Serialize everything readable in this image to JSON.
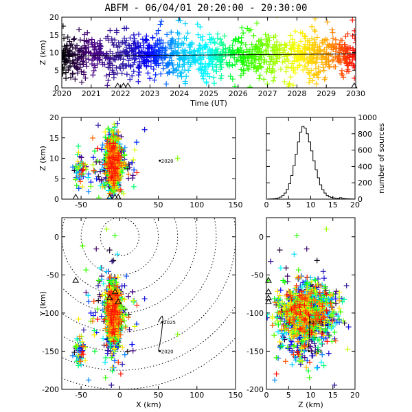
{
  "title": "ABFM - 06/04/01 20:20:00 - 20:30:00",
  "colors": {
    "time_gradient": [
      "#000000",
      "#4b0082",
      "#2f1a9a",
      "#0000ff",
      "#00bfff",
      "#00ffff",
      "#00ff00",
      "#7fff00",
      "#ffff00",
      "#ffa500",
      "#ff0000"
    ],
    "latest": "#ff0000",
    "axis": "#000000",
    "background": "#ffffff"
  },
  "chart_data": [
    {
      "id": "time_height",
      "type": "scatter",
      "xlabel": "Time (UT)",
      "ylabel": "Z (km)",
      "xlim": [
        2020,
        2030
      ],
      "ylim": [
        0,
        20
      ],
      "xticks": [
        "2020",
        "2021",
        "2022",
        "2023",
        "2024",
        "2025",
        "2026",
        "2027",
        "2028",
        "2029",
        "2030"
      ],
      "yticks": [
        "0",
        "5",
        "10",
        "15",
        "20"
      ],
      "density": {
        "z_center": 9.0,
        "z_spread": 3.0,
        "count": 1300
      },
      "trend_line": {
        "x": [
          2020,
          2030
        ],
        "y": [
          9.0,
          9.6
        ]
      },
      "stations_x": [
        2021.9,
        2022.1,
        2022.25,
        2029.95
      ]
    },
    {
      "id": "x_z",
      "type": "scatter",
      "xlabel": "",
      "ylabel": "Z (km)",
      "xlim": [
        -75,
        150
      ],
      "ylim": [
        0,
        20
      ],
      "xticks": [
        "-50",
        "0",
        "50",
        "100",
        "150"
      ],
      "yticks": [
        "0",
        "5",
        "10",
        "15",
        "20"
      ],
      "annotations": [
        {
          "text": "2020",
          "x": 52,
          "y": 9.4
        }
      ],
      "stations_x": [
        -57,
        -13,
        -6,
        -2
      ]
    },
    {
      "id": "histogram",
      "type": "bar",
      "xlabel": "",
      "ylabel": "number of sources",
      "xlim": [
        0,
        20
      ],
      "ylim": [
        0,
        1000
      ],
      "xticks": [
        "0",
        "5",
        "10",
        "15",
        "20"
      ],
      "yticks": [
        "0",
        "200",
        "400",
        "600",
        "800",
        "1000"
      ],
      "bin_width": 0.5,
      "bin_starts": [
        0,
        0.5,
        1,
        1.5,
        2,
        2.5,
        3,
        3.5,
        4,
        4.5,
        5,
        5.5,
        6,
        6.5,
        7,
        7.5,
        8,
        8.5,
        9,
        9.5,
        10,
        10.5,
        11,
        11.5,
        12,
        12.5,
        13,
        13.5,
        14,
        14.5,
        15,
        15.5,
        16,
        16.5,
        17,
        17.5,
        18,
        18.5,
        19,
        19.5
      ],
      "values": [
        0,
        2,
        3,
        5,
        8,
        15,
        25,
        45,
        75,
        120,
        190,
        290,
        410,
        550,
        700,
        820,
        890,
        870,
        800,
        700,
        590,
        470,
        360,
        260,
        175,
        115,
        75,
        45,
        28,
        20,
        15,
        10,
        8,
        18,
        10,
        6,
        4,
        3,
        2,
        1
      ]
    },
    {
      "id": "x_y",
      "type": "scatter",
      "xlabel": "X (km)",
      "ylabel": "Y (km)",
      "xlim": [
        -75,
        150
      ],
      "ylim": [
        -200,
        25
      ],
      "xticks": [
        "-50",
        "0",
        "50",
        "100",
        "150"
      ],
      "yticks": [
        "-200",
        "-150",
        "-100",
        "-50",
        "0"
      ],
      "range_rings_km": [
        25,
        50,
        75,
        100,
        125,
        150,
        175,
        200
      ],
      "annotations": [
        {
          "text": "2025",
          "x": 55,
          "y": -112
        },
        {
          "text": "2020",
          "x": 52,
          "y": -150
        }
      ],
      "track": {
        "x": [
          50,
          52,
          54,
          55,
          56,
          55,
          53,
          51,
          50
        ],
        "y": [
          -150,
          -140,
          -128,
          -118,
          -108,
          -104,
          -106,
          -110,
          -112
        ]
      },
      "stations": [
        [
          -57,
          -57
        ],
        [
          -13,
          -80
        ],
        [
          -6,
          -72
        ],
        [
          -2,
          -85
        ]
      ]
    },
    {
      "id": "z_y",
      "type": "scatter",
      "xlabel": "Z (km)",
      "ylabel": "",
      "xlim": [
        0,
        20
      ],
      "ylim": [
        -200,
        25
      ],
      "xticks": [
        "0",
        "5",
        "10",
        "15",
        "20"
      ],
      "yticks": [
        "-200",
        "-150",
        "-100",
        "-50",
        "0"
      ],
      "annotations": [
        {
          "text": "2025",
          "x": 9.8,
          "y": -112
        },
        {
          "text": "2020",
          "x": 9.6,
          "y": -150
        }
      ],
      "track": {
        "x": [
          9.4,
          9.6,
          9.7,
          9.8,
          9.7
        ],
        "y": [
          -150,
          -138,
          -126,
          -112,
          -104
        ]
      },
      "stations_y": [
        -57,
        -72,
        -80,
        -85
      ]
    }
  ]
}
